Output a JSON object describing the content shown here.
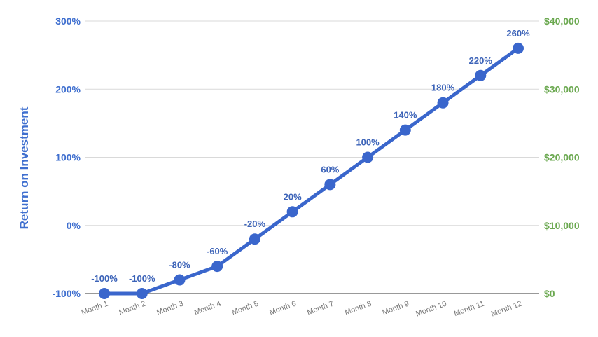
{
  "chart_data": {
    "type": "line",
    "title": "",
    "ylabel": "Return on Investment",
    "y2label": "",
    "categories": [
      "Month 1",
      "Month 2",
      "Month 3",
      "Month 4",
      "Month 5",
      "Month 6",
      "Month 7",
      "Month 8",
      "Month 9",
      "Month 10",
      "Month 11",
      "Month 12"
    ],
    "series": [
      {
        "values": [
          -100,
          -100,
          -80,
          -60,
          -20,
          20,
          60,
          100,
          140,
          180,
          220,
          260
        ],
        "labels": [
          "-100%",
          "-100%",
          "-80%",
          "-60%",
          "-20%",
          "20%",
          "60%",
          "100%",
          "140%",
          "180%",
          "220%",
          "260%"
        ],
        "color": "#3a66cc"
      }
    ],
    "ylim": [
      -100,
      300
    ],
    "y_ticks": [
      -100,
      0,
      100,
      200,
      300
    ],
    "y_tick_labels": [
      "-100%",
      "0%",
      "100%",
      "200%",
      "300%"
    ],
    "y2lim": [
      0,
      40000
    ],
    "y2_tick_labels": [
      "$0",
      "$10,000",
      "$20,000",
      "$30,000",
      "$40,000"
    ],
    "left_axis_color": "#3f6fcf",
    "right_axis_color": "#6aa84f",
    "grid": true,
    "legend": "none"
  }
}
